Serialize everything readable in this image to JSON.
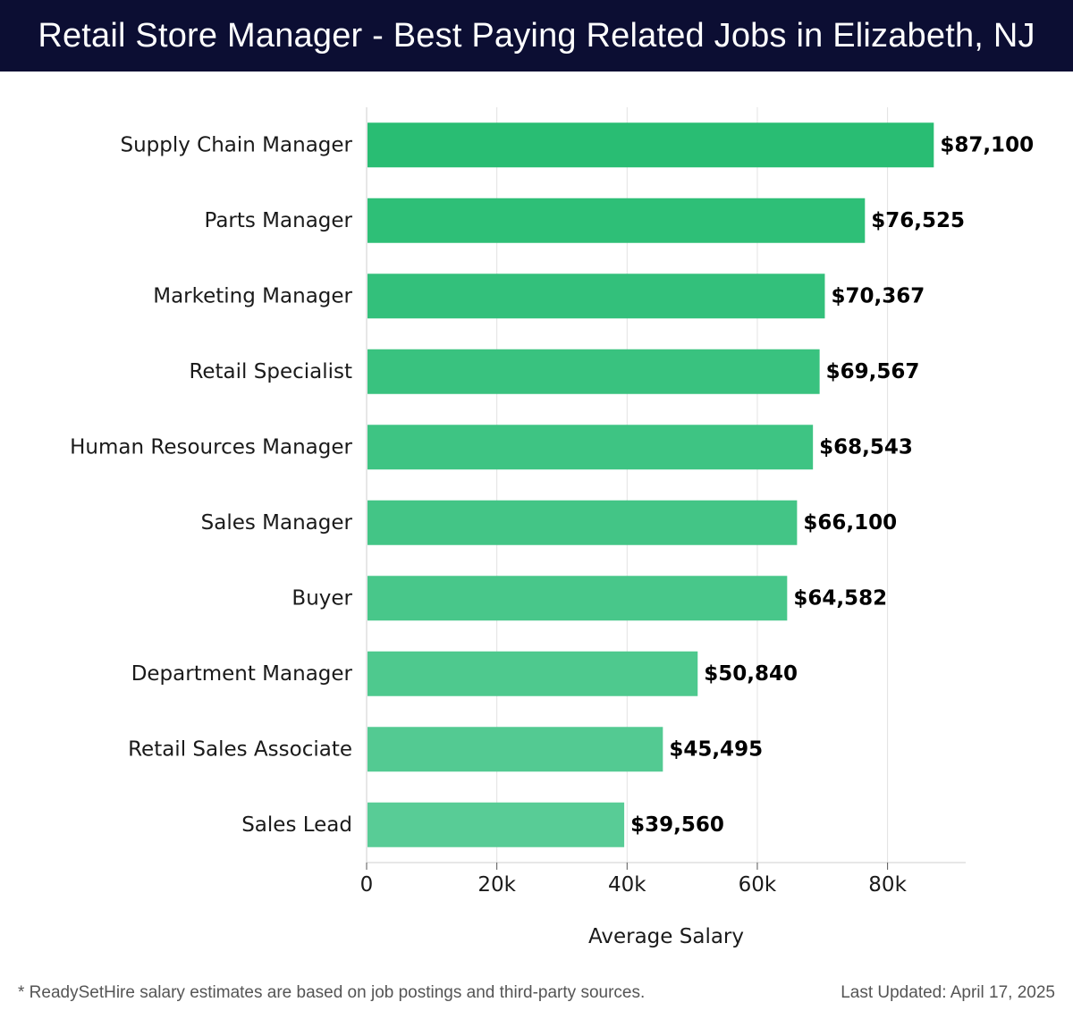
{
  "header": {
    "title": "Retail Store Manager - Best Paying Related Jobs in Elizabeth, NJ"
  },
  "colors": {
    "header_bg": "#0c0e33",
    "bar_top": "#29bd73",
    "bar_bottom": "#58cc96",
    "grid": "#e2e2e2",
    "axis": "#cfcfcf",
    "text": "#1a1a1a"
  },
  "chart_data": {
    "type": "bar",
    "orientation": "horizontal",
    "categories": [
      "Supply Chain Manager",
      "Parts Manager",
      "Marketing Manager",
      "Retail Specialist",
      "Human Resources Manager",
      "Sales Manager",
      "Buyer",
      "Department Manager",
      "Retail Sales Associate",
      "Sales Lead"
    ],
    "values": [
      87100,
      76525,
      70367,
      69567,
      68543,
      66100,
      64582,
      50840,
      45495,
      39560
    ],
    "data_labels": [
      "$87,100",
      "$76,525",
      "$70,367",
      "$69,567",
      "$68,543",
      "$66,100",
      "$64,582",
      "$50,840",
      "$45,495",
      "$39,560"
    ],
    "xlabel": "Average Salary",
    "ylabel": "",
    "xlim": [
      0,
      92000
    ],
    "ticks": [
      0,
      20000,
      40000,
      60000,
      80000
    ],
    "tick_labels": [
      "0",
      "20k",
      "40k",
      "60k",
      "80k"
    ],
    "grid": true
  },
  "footer": {
    "note": "* ReadySetHire salary estimates are based on job postings and third-party sources.",
    "updated": "Last Updated: April 17, 2025"
  }
}
